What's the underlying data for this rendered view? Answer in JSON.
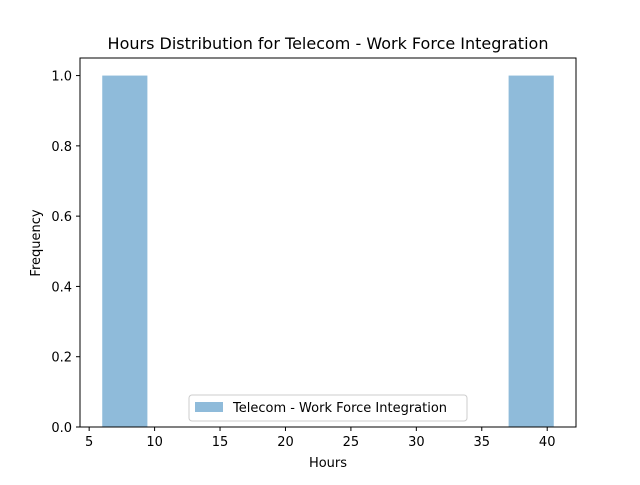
{
  "chart_data": {
    "type": "histogram",
    "title": "Hours Distribution for Telecom - Work Force Integration",
    "xlabel": "Hours",
    "ylabel": "Frequency",
    "xlim": [
      4.3,
      42.2
    ],
    "ylim": [
      0.0,
      1.05
    ],
    "x_ticks": [
      5,
      10,
      15,
      20,
      25,
      30,
      35,
      40
    ],
    "y_ticks": [
      0.0,
      0.2,
      0.4,
      0.6,
      0.8,
      1.0
    ],
    "bins": [
      {
        "start": 6.0,
        "end": 9.45,
        "count": 1
      },
      {
        "start": 9.45,
        "end": 12.9,
        "count": 0
      },
      {
        "start": 12.9,
        "end": 16.35,
        "count": 0
      },
      {
        "start": 16.35,
        "end": 19.8,
        "count": 0
      },
      {
        "start": 19.8,
        "end": 23.25,
        "count": 0
      },
      {
        "start": 23.25,
        "end": 26.7,
        "count": 0
      },
      {
        "start": 26.7,
        "end": 30.15,
        "count": 0
      },
      {
        "start": 30.15,
        "end": 33.6,
        "count": 0
      },
      {
        "start": 33.6,
        "end": 37.05,
        "count": 0
      },
      {
        "start": 37.05,
        "end": 40.5,
        "count": 1
      }
    ],
    "series": [
      {
        "name": "Telecom - Work Force Integration",
        "color": "#8fbbda"
      }
    ],
    "grid": false,
    "legend_position": "lower-center"
  }
}
